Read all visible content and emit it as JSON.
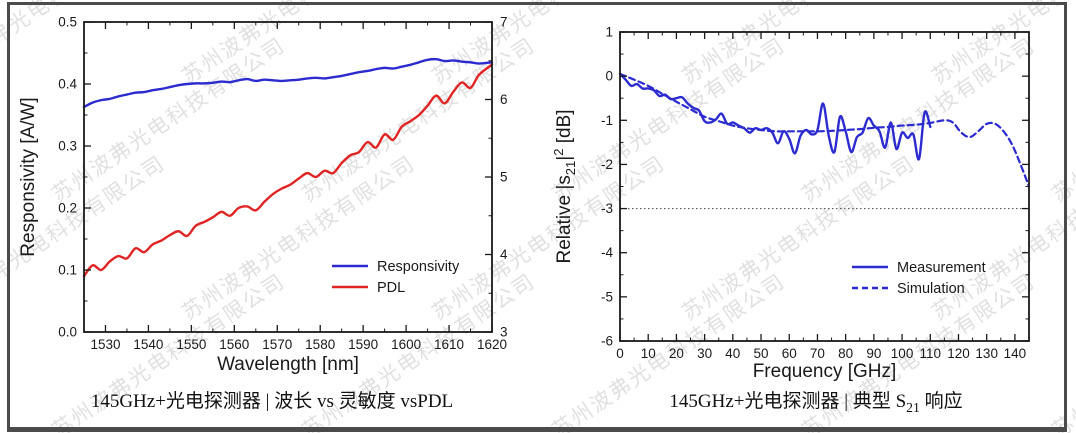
{
  "page": {
    "background": "#ffffff",
    "frame_color": "#4b4b4b"
  },
  "watermark": {
    "text": "苏州波弗光电科技有限公司",
    "color": "#9a9a9a"
  },
  "chart_data": [
    {
      "name": "responsivity-pdl-vs-wavelength",
      "type": "line",
      "caption": "145GHz+光电探测器 | 波长 vs 灵敏度 vsPDL",
      "xlabel": "Wavelength  [nm]",
      "ylabel": "Responsivity  [A/W]",
      "xlim": [
        1525,
        1620
      ],
      "ylim": [
        0,
        0.5
      ],
      "y2lim": [
        3,
        7
      ],
      "xticks": [
        1530,
        1540,
        1550,
        1560,
        1570,
        1580,
        1590,
        1600,
        1610,
        1620
      ],
      "xtick_labels": [
        "1530",
        "1540",
        "1550",
        "1560",
        "1570",
        "1580",
        "1590",
        "1600",
        "1610",
        "1620"
      ],
      "yticks": [
        0,
        0.1,
        0.2,
        0.3,
        0.4,
        0.5
      ],
      "ytick_labels": [
        "0.0",
        "0.1",
        "0.2",
        "0.3",
        "0.4",
        "0.5"
      ],
      "y2ticks": [
        3,
        4,
        5,
        6,
        7
      ],
      "y2tick_labels": [
        "3",
        "4",
        "5",
        "6",
        "7"
      ],
      "x_minor_step": 5,
      "y_minor_step": 0.05,
      "y2_minor_step": 0.5,
      "grid": false,
      "legend_position": "inside lower-right",
      "legend": [
        {
          "label": "Responsivity",
          "color": "#2b2bd0",
          "dash": ""
        },
        {
          "label": "PDL",
          "color": "#e02424",
          "dash": ""
        }
      ],
      "series": [
        {
          "name": "Responsivity",
          "axis": "y1",
          "color": "#2b2bd0",
          "dash": "",
          "width": 2.4,
          "x": [
            1525,
            1527,
            1529,
            1531,
            1533,
            1535,
            1537,
            1539,
            1541,
            1543,
            1545,
            1547,
            1549,
            1551,
            1553,
            1555,
            1557,
            1559,
            1561,
            1563,
            1565,
            1567,
            1569,
            1571,
            1573,
            1575,
            1577,
            1579,
            1581,
            1583,
            1585,
            1587,
            1589,
            1591,
            1593,
            1595,
            1597,
            1599,
            1601,
            1603,
            1605,
            1607,
            1609,
            1611,
            1613,
            1615,
            1617,
            1620
          ],
          "y": [
            0.363,
            0.37,
            0.374,
            0.376,
            0.38,
            0.383,
            0.386,
            0.387,
            0.39,
            0.392,
            0.395,
            0.398,
            0.4,
            0.401,
            0.401,
            0.402,
            0.404,
            0.403,
            0.406,
            0.408,
            0.405,
            0.407,
            0.406,
            0.405,
            0.406,
            0.407,
            0.409,
            0.41,
            0.409,
            0.411,
            0.413,
            0.416,
            0.419,
            0.421,
            0.424,
            0.426,
            0.425,
            0.428,
            0.431,
            0.435,
            0.439,
            0.44,
            0.437,
            0.438,
            0.436,
            0.435,
            0.433,
            0.435
          ]
        },
        {
          "name": "PDL",
          "axis": "y2",
          "color": "#e02424",
          "dash": "",
          "width": 2.4,
          "x": [
            1525,
            1527,
            1529,
            1531,
            1533,
            1535,
            1537,
            1539,
            1541,
            1543,
            1545,
            1547,
            1549,
            1551,
            1553,
            1555,
            1557,
            1559,
            1561,
            1563,
            1565,
            1567,
            1569,
            1571,
            1573,
            1575,
            1577,
            1579,
            1581,
            1583,
            1585,
            1587,
            1589,
            1591,
            1593,
            1595,
            1597,
            1599,
            1601,
            1603,
            1605,
            1607,
            1609,
            1611,
            1613,
            1615,
            1617,
            1620
          ],
          "y": [
            3.72,
            3.86,
            3.8,
            3.91,
            3.98,
            3.95,
            4.08,
            4.03,
            4.13,
            4.18,
            4.25,
            4.3,
            4.24,
            4.37,
            4.42,
            4.48,
            4.55,
            4.5,
            4.6,
            4.62,
            4.57,
            4.68,
            4.78,
            4.85,
            4.9,
            4.98,
            5.05,
            5.0,
            5.08,
            5.05,
            5.18,
            5.28,
            5.32,
            5.45,
            5.38,
            5.55,
            5.48,
            5.65,
            5.72,
            5.8,
            5.92,
            6.05,
            5.95,
            6.1,
            6.22,
            6.15,
            6.32,
            6.45
          ]
        }
      ]
    },
    {
      "name": "s21-response-vs-frequency",
      "type": "line",
      "caption_pre": "145GHz+光电探测器 | 典型 S",
      "caption_sub": "21",
      "caption_post": " 响应",
      "xlabel": "Frequency  [GHz]",
      "ylabel_parts": {
        "pre": "Relative |s",
        "sub": "21",
        "mid": "|",
        "sup": "2",
        "post": "  [dB]"
      },
      "xlim": [
        0,
        145
      ],
      "ylim": [
        -6,
        1
      ],
      "xticks": [
        0,
        10,
        20,
        30,
        40,
        50,
        60,
        70,
        80,
        90,
        100,
        110,
        120,
        130,
        140
      ],
      "xtick_labels": [
        "0",
        "10",
        "20",
        "30",
        "40",
        "50",
        "60",
        "70",
        "80",
        "90",
        "100",
        "110",
        "120",
        "130",
        "140"
      ],
      "yticks": [
        1,
        0,
        -1,
        -2,
        -3,
        -4,
        -5,
        -6
      ],
      "ytick_labels": [
        "1",
        "0",
        "-1",
        "-2",
        "-3",
        "-4",
        "-5",
        "-6"
      ],
      "x_minor_step": 5,
      "y_minor_step": 0.5,
      "grid": false,
      "ref_line": {
        "y": -3,
        "style": "dotted",
        "color": "#444444"
      },
      "legend_position": "inside lower-right",
      "legend": [
        {
          "label": "Measurement",
          "color": "#2b2bd0",
          "dash": ""
        },
        {
          "label": "Simulation",
          "color": "#2b2bd0",
          "dash": "6 4"
        }
      ],
      "series": [
        {
          "name": "Measurement",
          "axis": "y1",
          "color": "#2b2bd0",
          "dash": "",
          "width": 2.4,
          "x": [
            0,
            2,
            4,
            6,
            8,
            10,
            12,
            14,
            16,
            18,
            20,
            22,
            24,
            26,
            28,
            30,
            32,
            34,
            36,
            38,
            40,
            42,
            44,
            46,
            48,
            50,
            52,
            54,
            56,
            58,
            60,
            62,
            64,
            66,
            68,
            70,
            72,
            74,
            76,
            78,
            80,
            82,
            84,
            86,
            88,
            90,
            92,
            94,
            96,
            98,
            100,
            102,
            104,
            106,
            108,
            110
          ],
          "y": [
            0.05,
            -0.08,
            -0.22,
            -0.18,
            -0.28,
            -0.28,
            -0.32,
            -0.45,
            -0.42,
            -0.52,
            -0.5,
            -0.48,
            -0.62,
            -0.72,
            -0.78,
            -1.02,
            -1.05,
            -0.98,
            -0.85,
            -1.08,
            -1.05,
            -1.12,
            -1.18,
            -1.28,
            -1.18,
            -1.22,
            -1.18,
            -1.28,
            -1.52,
            -1.25,
            -1.42,
            -1.75,
            -1.35,
            -1.22,
            -1.32,
            -1.22,
            -0.62,
            -1.35,
            -1.72,
            -0.92,
            -1.25,
            -1.72,
            -1.38,
            -1.28,
            -0.95,
            -1.12,
            -1.25,
            -1.62,
            -1.05,
            -1.65,
            -1.28,
            -1.4,
            -1.32,
            -1.88,
            -0.82,
            -1.15
          ]
        },
        {
          "name": "Simulation",
          "axis": "y1",
          "color": "#2b2bd0",
          "dash": "6 4",
          "width": 2.2,
          "x": [
            0,
            5,
            10,
            15,
            20,
            25,
            30,
            35,
            40,
            45,
            50,
            55,
            60,
            65,
            70,
            75,
            80,
            85,
            90,
            95,
            100,
            105,
            110,
            115,
            118,
            121,
            124,
            127,
            130,
            133,
            136,
            139,
            142,
            145
          ],
          "y": [
            0.05,
            -0.08,
            -0.22,
            -0.4,
            -0.58,
            -0.75,
            -0.92,
            -1.02,
            -1.12,
            -1.18,
            -1.22,
            -1.25,
            -1.25,
            -1.25,
            -1.25,
            -1.24,
            -1.22,
            -1.2,
            -1.17,
            -1.15,
            -1.12,
            -1.1,
            -1.06,
            -1.0,
            -1.05,
            -1.28,
            -1.38,
            -1.25,
            -1.08,
            -1.08,
            -1.25,
            -1.55,
            -2.0,
            -2.5
          ]
        }
      ]
    }
  ]
}
